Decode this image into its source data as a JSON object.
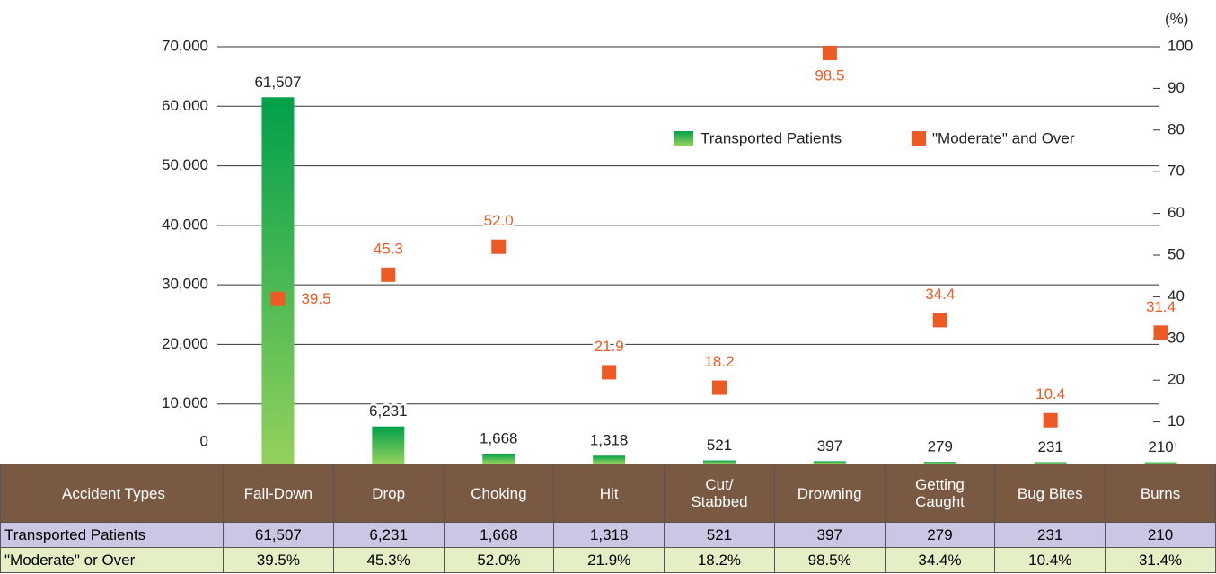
{
  "chart_data": {
    "type": "bar-line",
    "y2_unit": "(%)",
    "categories": [
      "Fall-Down",
      "Drop",
      "Choking",
      "Hit",
      "Cut/\nStabbed",
      "Drowning",
      "Getting\nCaught",
      "Bug Bites",
      "Burns"
    ],
    "series": [
      {
        "name": "Transported Patients",
        "color": "#0aa04c",
        "values": [
          61507,
          6231,
          1668,
          1318,
          521,
          397,
          279,
          231,
          210
        ],
        "value_labels": [
          "61,507",
          "6,231",
          "1,668",
          "1,318",
          "521",
          "397",
          "279",
          "231",
          "210"
        ]
      },
      {
        "name": "\"Moderate\" and Over",
        "color": "#ee5a24",
        "axis": "y2",
        "values": [
          39.5,
          45.3,
          52.0,
          21.9,
          18.2,
          98.5,
          34.4,
          10.4,
          31.4
        ],
        "value_labels": [
          "39.5",
          "45.3",
          "52.0",
          "21.9",
          "18.2",
          "98.5",
          "34.4",
          "10.4",
          "31.4"
        ]
      }
    ],
    "ylim": [
      0,
      70000
    ],
    "yticks": [
      {
        "value": 0,
        "label": "0"
      },
      {
        "value": 10000,
        "label": "10,000"
      },
      {
        "value": 20000,
        "label": "20,000"
      },
      {
        "value": 30000,
        "label": "30,000"
      },
      {
        "value": 40000,
        "label": "40,000"
      },
      {
        "value": 50000,
        "label": "50,000"
      },
      {
        "value": 60000,
        "label": "60,000"
      },
      {
        "value": 70000,
        "label": "70,000"
      }
    ],
    "y2lim": [
      0,
      100
    ],
    "y2ticks": [
      0,
      10,
      20,
      30,
      40,
      50,
      60,
      70,
      80,
      90,
      100
    ],
    "grid": true
  },
  "table": {
    "corner": "Accident Types",
    "rows": [
      {
        "label": "Transported Patients",
        "cells": [
          "61,507",
          "6,231",
          "1,668",
          "1,318",
          "521",
          "397",
          "279",
          "231",
          "210"
        ]
      },
      {
        "label": "\"Moderate\" or Over",
        "cells": [
          "39.5%",
          "45.3%",
          "52.0%",
          "21.9%",
          "18.2%",
          "98.5%",
          "34.4%",
          "10.4%",
          "31.4%"
        ]
      }
    ]
  }
}
